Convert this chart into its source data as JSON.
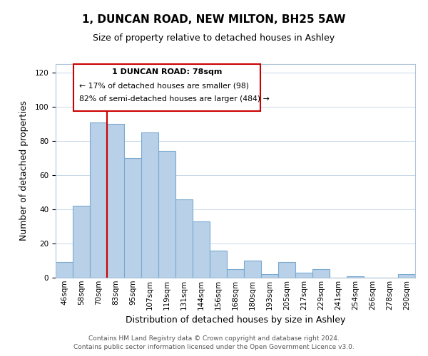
{
  "title": "1, DUNCAN ROAD, NEW MILTON, BH25 5AW",
  "subtitle": "Size of property relative to detached houses in Ashley",
  "xlabel": "Distribution of detached houses by size in Ashley",
  "ylabel": "Number of detached properties",
  "bar_labels": [
    "46sqm",
    "58sqm",
    "70sqm",
    "83sqm",
    "95sqm",
    "107sqm",
    "119sqm",
    "131sqm",
    "144sqm",
    "156sqm",
    "168sqm",
    "180sqm",
    "193sqm",
    "205sqm",
    "217sqm",
    "229sqm",
    "241sqm",
    "254sqm",
    "266sqm",
    "278sqm",
    "290sqm"
  ],
  "bar_values": [
    9,
    42,
    91,
    90,
    70,
    85,
    74,
    46,
    33,
    16,
    5,
    10,
    2,
    9,
    3,
    5,
    0,
    1,
    0,
    0,
    2
  ],
  "bar_color": "#b8d0e8",
  "bar_edge_color": "#7aaad0",
  "vline_color": "#cc0000",
  "ylim": [
    0,
    125
  ],
  "yticks": [
    0,
    20,
    40,
    60,
    80,
    100,
    120
  ],
  "ann_line1": "1 DUNCAN ROAD: 78sqm",
  "ann_line2": "← 17% of detached houses are smaller (98)",
  "ann_line3": "82% of semi-detached houses are larger (484) →",
  "footer_line1": "Contains HM Land Registry data © Crown copyright and database right 2024.",
  "footer_line2": "Contains public sector information licensed under the Open Government Licence v3.0.",
  "background_color": "#ffffff",
  "grid_color": "#c8d8e8",
  "title_fontsize": 11,
  "subtitle_fontsize": 9,
  "axis_label_fontsize": 9,
  "tick_fontsize": 7.5,
  "footer_fontsize": 6.5
}
